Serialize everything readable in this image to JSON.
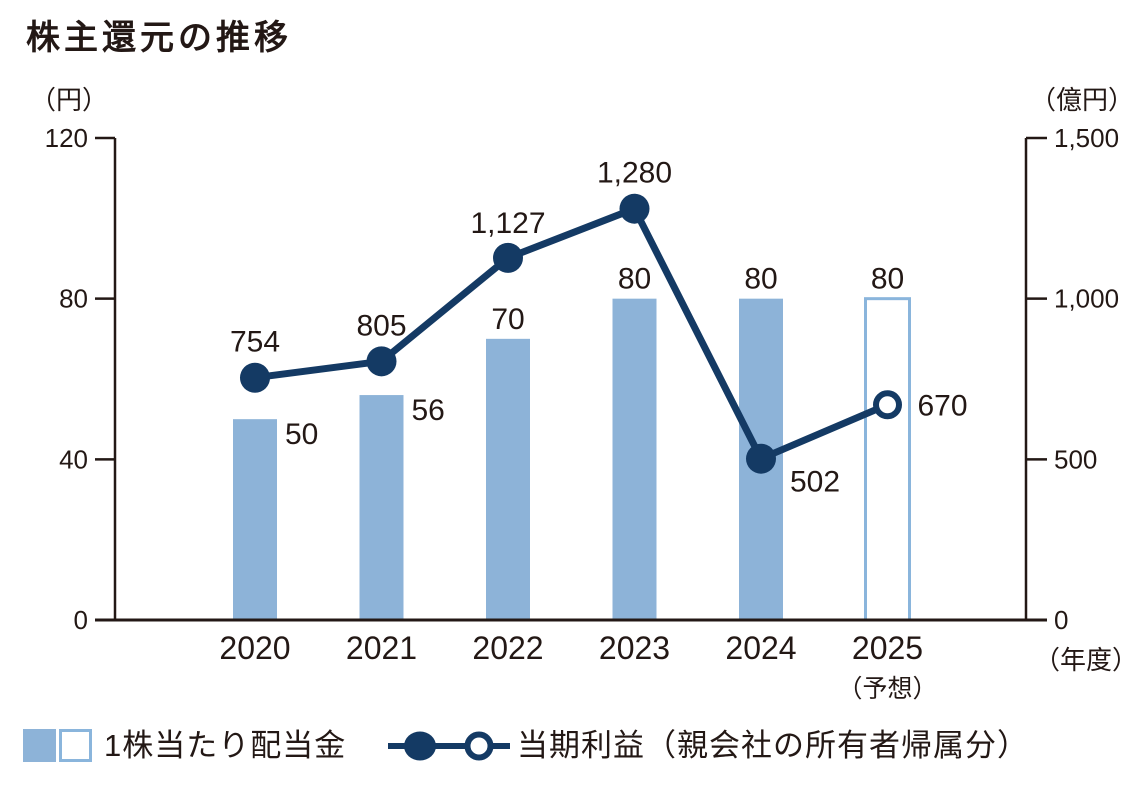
{
  "title": "株主還元の推移",
  "colors": {
    "bar": "#8db3d8",
    "bar_forecast_outline": "#8ab5dc",
    "line": "#143a64",
    "axis": "#231815",
    "text": "#231815",
    "background": "#ffffff"
  },
  "left_axis": {
    "unit": "（円）",
    "ticks": [
      0,
      40,
      80,
      120
    ],
    "tick_labels": [
      "0",
      "40",
      "80",
      "120"
    ]
  },
  "right_axis": {
    "unit": "（億円）",
    "ticks": [
      0,
      500,
      1000,
      1500
    ],
    "tick_labels": [
      "0",
      "500",
      "1,000",
      "1,500"
    ]
  },
  "x_axis": {
    "unit": "（年度）",
    "forecast_note": "（予想）"
  },
  "legend": {
    "items": [
      {
        "label": "1株当たり配当金"
      },
      {
        "label": "当期利益（親会社の所有者帰属分）"
      }
    ]
  },
  "chart_data": {
    "type": "bar+line",
    "categories": [
      "2020",
      "2021",
      "2022",
      "2023",
      "2024",
      "2025"
    ],
    "forecast_index": 5,
    "left_ylim": [
      0,
      120
    ],
    "right_ylim": [
      0,
      1500
    ],
    "series": [
      {
        "name": "1株当たり配当金",
        "type": "bar",
        "axis": "left",
        "unit": "円",
        "values": [
          50,
          56,
          70,
          80,
          80,
          80
        ],
        "labels": [
          "50",
          "56",
          "70",
          "80",
          "80",
          "80"
        ]
      },
      {
        "name": "当期利益（親会社の所有者帰属分）",
        "type": "line",
        "axis": "right",
        "unit": "億円",
        "values": [
          754,
          805,
          1127,
          1280,
          502,
          670
        ],
        "labels": [
          "754",
          "805",
          "1,127",
          "1,280",
          "502",
          "670"
        ]
      }
    ]
  }
}
